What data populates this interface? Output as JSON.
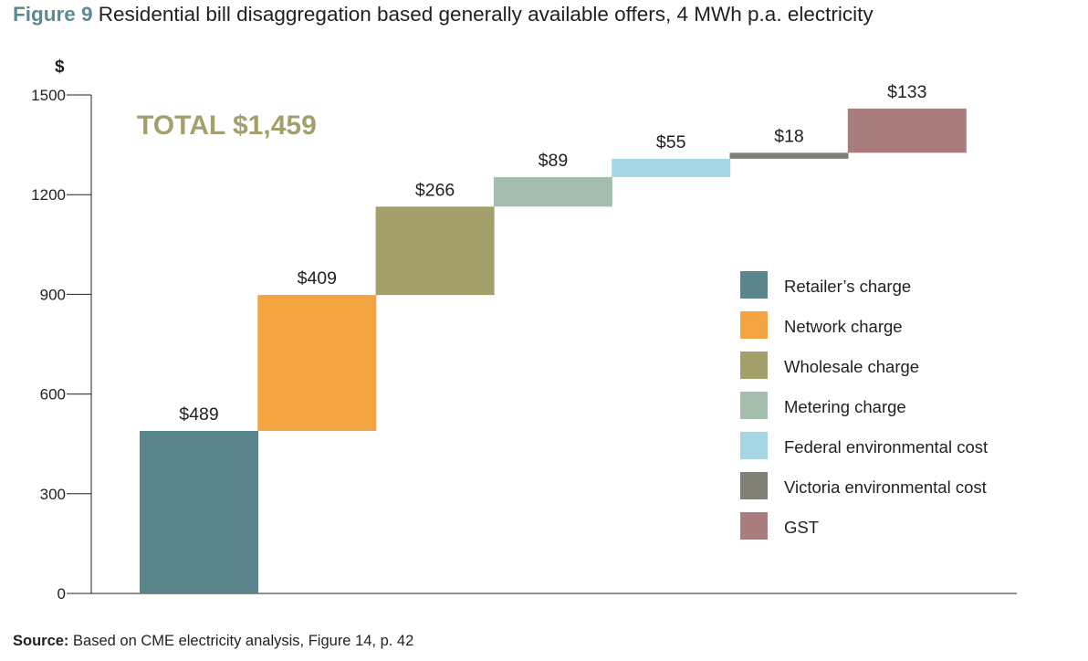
{
  "figure": {
    "number": "Figure 9",
    "title": "Residential bill disaggregation based generally available offers, 4 MWh p.a. electricity"
  },
  "source": {
    "label": "Source:",
    "text": "Based on CME electricity analysis, Figure 14, p. 42"
  },
  "chart_data": {
    "type": "bar",
    "subtype": "waterfall",
    "title": "Residential bill disaggregation based generally available offers, 4 MWh p.a. electricity",
    "xlabel": "",
    "ylabel": "$",
    "ylim": [
      0,
      1500
    ],
    "yticks": [
      0,
      300,
      600,
      900,
      1200,
      1500
    ],
    "grid": false,
    "legend_position": "right",
    "annotation": {
      "text": "TOTAL $1,459",
      "color": "#a3a06b"
    },
    "categories": [
      "Retailer’s charge",
      "Network charge",
      "Wholesale charge",
      "Metering charge",
      "Federal environmental cost",
      "Victoria environmental cost",
      "GST"
    ],
    "values": [
      489,
      409,
      266,
      89,
      55,
      18,
      133
    ],
    "labels": [
      "$489",
      "$409",
      "$266",
      "$89",
      "$55",
      "$18",
      "$133"
    ],
    "colors": [
      "#5a858c",
      "#f4a341",
      "#a3a06b",
      "#a4bdad",
      "#a6d5e4",
      "#7f7f76",
      "#a97d7d"
    ],
    "total": 1459
  }
}
